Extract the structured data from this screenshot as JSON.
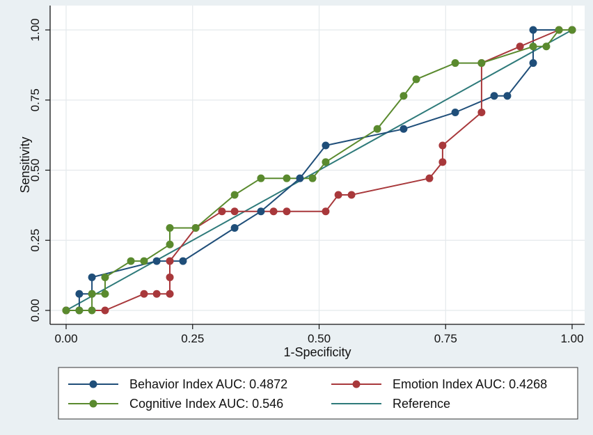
{
  "chart_data": {
    "type": "line",
    "xlabel": "1-Specificity",
    "ylabel": "Sensitivity",
    "xlim": [
      0,
      1
    ],
    "ylim": [
      0,
      1
    ],
    "x_ticks": [
      "0.00",
      "0.25",
      "0.50",
      "0.75",
      "1.00"
    ],
    "y_ticks": [
      "0.00",
      "0.25",
      "0.50",
      "0.75",
      "1.00"
    ],
    "grid": true,
    "legend_position": "bottom",
    "series": [
      {
        "name": "Behavior Index AUC: 0.4872",
        "color": "#1f4e79",
        "markers": true,
        "points": [
          [
            0,
            0
          ],
          [
            0.026,
            0
          ],
          [
            0.026,
            0.059
          ],
          [
            0.051,
            0.059
          ],
          [
            0.051,
            0.118
          ],
          [
            0.179,
            0.176
          ],
          [
            0.231,
            0.176
          ],
          [
            0.333,
            0.294
          ],
          [
            0.385,
            0.353
          ],
          [
            0.462,
            0.471
          ],
          [
            0.513,
            0.588
          ],
          [
            0.667,
            0.647
          ],
          [
            0.769,
            0.706
          ],
          [
            0.846,
            0.765
          ],
          [
            0.872,
            0.765
          ],
          [
            0.923,
            0.882
          ],
          [
            0.923,
            1.0
          ],
          [
            1.0,
            1.0
          ]
        ]
      },
      {
        "name": "Emotion Index AUC: 0.4268",
        "color": "#a8383b",
        "markers": true,
        "points": [
          [
            0,
            0
          ],
          [
            0.077,
            0
          ],
          [
            0.154,
            0.059
          ],
          [
            0.179,
            0.059
          ],
          [
            0.205,
            0.059
          ],
          [
            0.205,
            0.118
          ],
          [
            0.205,
            0.176
          ],
          [
            0.256,
            0.294
          ],
          [
            0.308,
            0.353
          ],
          [
            0.333,
            0.353
          ],
          [
            0.41,
            0.353
          ],
          [
            0.436,
            0.353
          ],
          [
            0.513,
            0.353
          ],
          [
            0.538,
            0.412
          ],
          [
            0.564,
            0.412
          ],
          [
            0.718,
            0.471
          ],
          [
            0.744,
            0.529
          ],
          [
            0.744,
            0.588
          ],
          [
            0.821,
            0.706
          ],
          [
            0.821,
            0.882
          ],
          [
            0.897,
            0.941
          ],
          [
            0.974,
            1.0
          ],
          [
            1.0,
            1.0
          ]
        ]
      },
      {
        "name": "Cognitive Index AUC: 0.546",
        "color": "#5a8a2e",
        "markers": true,
        "points": [
          [
            0,
            0
          ],
          [
            0.026,
            0
          ],
          [
            0.051,
            0
          ],
          [
            0.051,
            0.059
          ],
          [
            0.077,
            0.059
          ],
          [
            0.077,
            0.118
          ],
          [
            0.128,
            0.176
          ],
          [
            0.154,
            0.176
          ],
          [
            0.205,
            0.235
          ],
          [
            0.205,
            0.294
          ],
          [
            0.256,
            0.294
          ],
          [
            0.333,
            0.412
          ],
          [
            0.385,
            0.471
          ],
          [
            0.436,
            0.471
          ],
          [
            0.487,
            0.471
          ],
          [
            0.513,
            0.529
          ],
          [
            0.615,
            0.647
          ],
          [
            0.667,
            0.765
          ],
          [
            0.692,
            0.824
          ],
          [
            0.769,
            0.882
          ],
          [
            0.821,
            0.882
          ],
          [
            0.923,
            0.941
          ],
          [
            0.949,
            0.941
          ],
          [
            0.974,
            1.0
          ],
          [
            1.0,
            1.0
          ]
        ]
      },
      {
        "name": "Reference",
        "color": "#2e7a7a",
        "markers": false,
        "points": [
          [
            0,
            0
          ],
          [
            1,
            1
          ]
        ]
      }
    ]
  }
}
